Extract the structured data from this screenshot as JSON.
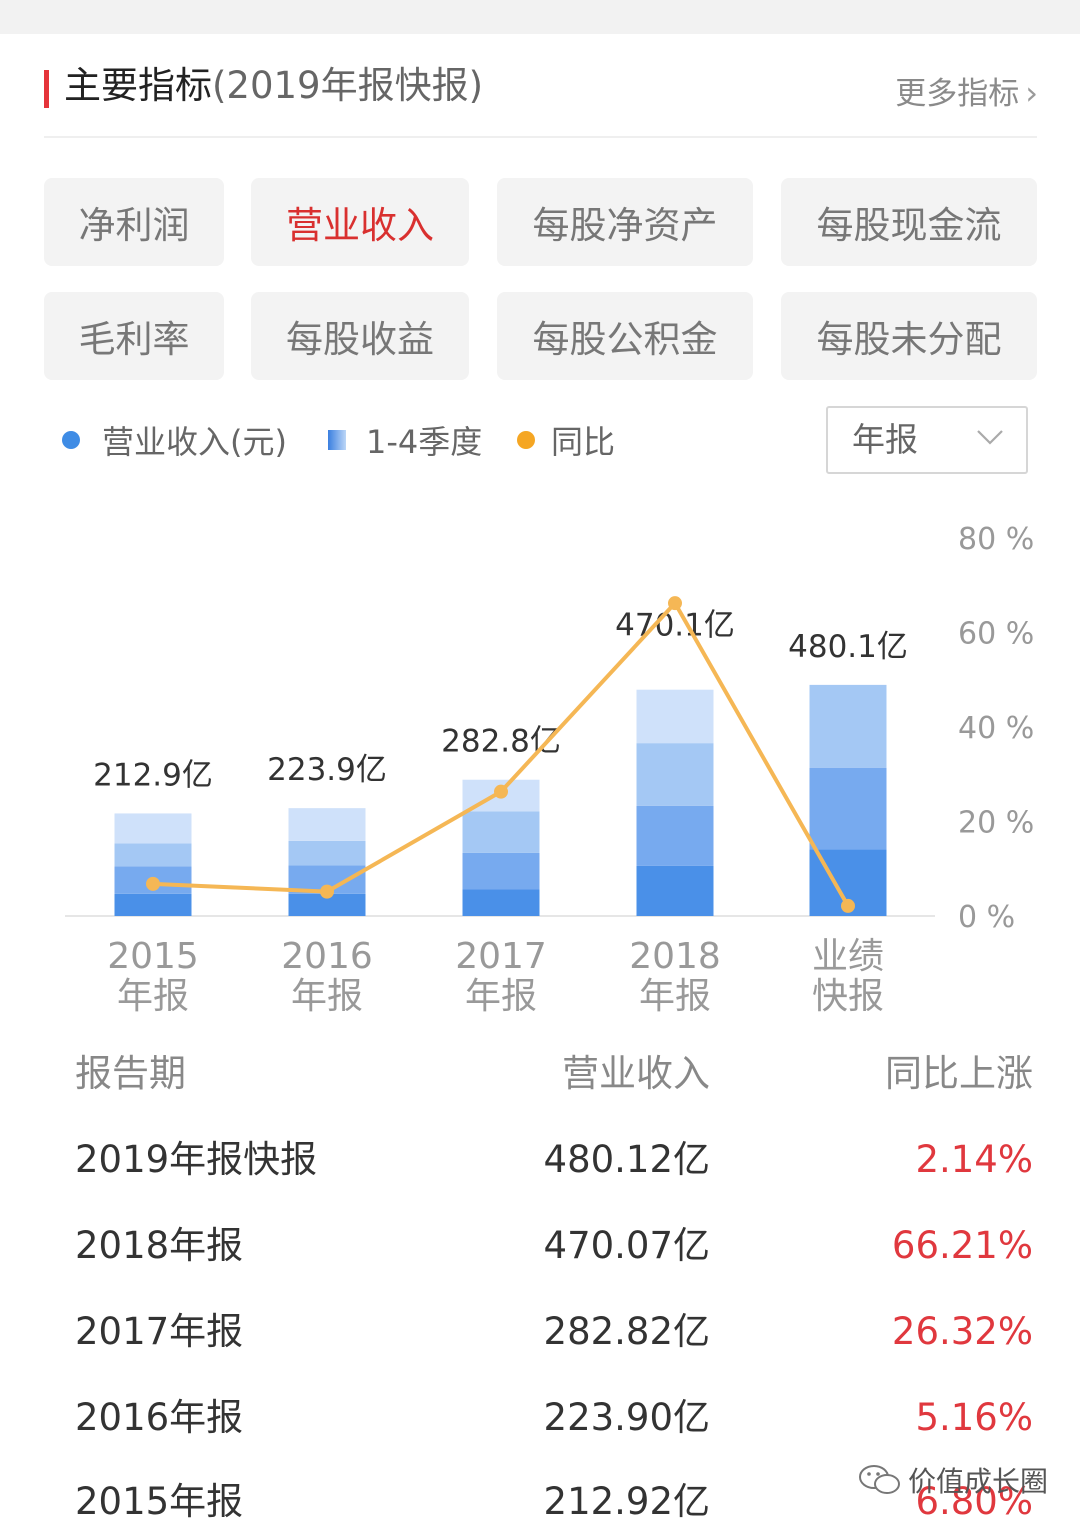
{
  "header": {
    "title": "主要指标",
    "subtitle": "(2019年报快报)",
    "more_label": "更多指标"
  },
  "tabs": [
    {
      "label": "净利润",
      "active": false
    },
    {
      "label": "营业收入",
      "active": true
    },
    {
      "label": "每股净资产",
      "active": false
    },
    {
      "label": "每股现金流",
      "active": false
    },
    {
      "label": "毛利率",
      "active": false
    },
    {
      "label": "每股收益",
      "active": false
    },
    {
      "label": "每股公积金",
      "active": false
    },
    {
      "label": "每股未分配",
      "active": false
    }
  ],
  "legend": {
    "revenue": "营业收入(元)",
    "quarters": "1-4季度",
    "yoy": "同比"
  },
  "period_select": {
    "value": "年报"
  },
  "colors": {
    "accent": "#e5343a",
    "up_red": "#e0383e",
    "line": "#f5b755",
    "q1": "#4a90e8",
    "q2": "#77aaef",
    "q3": "#a4c8f4",
    "q4": "#cfe1fa"
  },
  "chart_data": {
    "type": "bar",
    "categories": [
      [
        "2015",
        "年报"
      ],
      [
        "2016",
        "年报"
      ],
      [
        "2017",
        "年报"
      ],
      [
        "2018",
        "年报"
      ],
      [
        "业绩",
        "快报"
      ]
    ],
    "bar_labels": [
      "212.9亿",
      "223.9亿",
      "282.8亿",
      "470.1亿",
      "480.1亿"
    ],
    "series": [
      {
        "name": "1-4季度",
        "stacked": [
          [
            46,
            57,
            48,
            62
          ],
          [
            46,
            59,
            51,
            68
          ],
          [
            55,
            76,
            86,
            66
          ],
          [
            104,
            125,
            130,
            111
          ],
          [
            138,
            170,
            172
          ]
        ]
      },
      {
        "name": "同比",
        "axis": "right",
        "values": [
          6.8,
          5.16,
          26.32,
          66.21,
          2.14
        ]
      }
    ],
    "ylim_left": [
      0,
      600
    ],
    "right_axis": {
      "ticks": [
        "0 %",
        "20 %",
        "40 %",
        "60 %",
        "80 %"
      ],
      "range": [
        0,
        80
      ]
    }
  },
  "table": {
    "headers": [
      "报告期",
      "营业收入",
      "同比上涨"
    ],
    "rows": [
      [
        "2019年报快报",
        "480.12亿",
        "2.14%"
      ],
      [
        "2018年报",
        "470.07亿",
        "66.21%"
      ],
      [
        "2017年报",
        "282.82亿",
        "26.32%"
      ],
      [
        "2016年报",
        "223.90亿",
        "5.16%"
      ],
      [
        "2015年报",
        "212.92亿",
        "6.80%"
      ]
    ]
  },
  "watermark": {
    "text": "价值成长圈",
    "icon": "wechat-icon"
  }
}
